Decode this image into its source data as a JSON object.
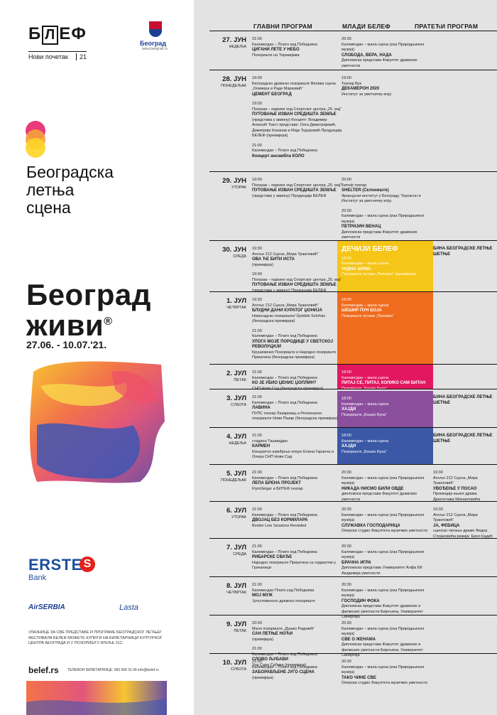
{
  "branding": {
    "belef_pre": "Б",
    "belef_box": "Л",
    "belef_mid": "Е",
    "belef_post": "Ф",
    "belef_sub": "Нови почетак",
    "belef_year": "21",
    "city_name": "Београд",
    "city_url": "www.beograd.rs"
  },
  "festival": {
    "l1": "Београдска",
    "l2": "летња",
    "l3": "сцена"
  },
  "headline": {
    "l1": "Београд",
    "l2": "живи",
    "reg": "®",
    "dates": "27.06. - 10.07.'21."
  },
  "sponsors": {
    "erste": "ERSTE",
    "erste_s": "S",
    "bank": "Bank",
    "airserbia": "AirSERBIA",
    "lasta": "Lasta"
  },
  "footer": {
    "notice": "УЛАЗНИЦЕ ЗА СВЕ ПРЕДСТАВЕ И ПРОГРАМЕ БЕОГРАДСКОГ ЛЕТЊЕГ ФЕСТИВАЛА БЕЛЕФ МОЖЕТЕ КУПИТИ НА БИЛЕТАРНИЦИ КУЛТУРНОГ ЦЕНТРА БЕОГРАДА И У ПОЗОРИШТУ АТЕЉЕ 212.",
    "site": "belef.rs",
    "tel": "ТЕЛЕФОН БИЛЕТАРНИЦЕ: 060 600 31 06   info@belef.rs"
  },
  "headers": {
    "main": "ГЛАВНИ ПРОГРАМ",
    "young": "МЛАДИ БЕЛЕФ",
    "side": "ПРАТЕЋИ ПРОГРАМ"
  },
  "colors": {
    "yellow": "#f5c518",
    "orange": "#ef6c1f",
    "pink": "#e2175f",
    "purple": "#8c4f9e",
    "blue": "#3b58a6",
    "background": "#e3e3e3"
  },
  "schedule": [
    {
      "date": "27. ЈУН",
      "weekday": "НЕДЕЉА",
      "main": [
        {
          "time": "21:00",
          "place": "Калемегдан – Плато код Победника",
          "title": "ЦИГАНИ ЛЕТЕ У НЕБО",
          "info": "Позориште на Теразијама"
        }
      ],
      "young": [
        {
          "time": "20:30",
          "place": "Калемегдан – мала сцена (иза Природњачког музеја)",
          "title": "СЛОБОДА, ВЕРА, НАДА",
          "info": "Дипломска представа Факултет драмских уметности"
        }
      ],
      "side": []
    },
    {
      "date": "28. ЈУН",
      "weekday": "ПОНЕДЕЉАК",
      "main": [
        {
          "time": "19:00",
          "place": "Београдско драмско позориште Велика сцена „Оливера и Раде Марковић“",
          "title": "ЦЕМЕНТ БЕОГРАД",
          "info": ""
        },
        {
          "time": "19:00",
          "place": "Полазак – паркинг код Спортског центра „25. мај“",
          "title": "ПУТОВАЊЕ ИЗВАН СРЕДИШТА ЗЕМЉЕ",
          "info": "(представа у авиону) Концепт: Владимир Алексић Текст представе: Олга Димитријевић, Димитрије Коканов и Маја Тодоровић Продукција БЕЛЕФ (премијера)"
        },
        {
          "time": "21:00",
          "place": "Калемегдан – Плато код Победника",
          "title": "Концерт ансамбла КОЛО",
          "info": ""
        }
      ],
      "young": [
        {
          "time": "19:00",
          "place": "Театар Вук",
          "title": "ДЕКАМЕРОН 2020",
          "info": "Институт за уметничку игру"
        }
      ],
      "side": []
    },
    {
      "date": "29. ЈУН",
      "weekday": "УТОРАК",
      "main": [
        {
          "time": "19:00",
          "place": "Полазак – паркинг код Спортског центра „25. мај“",
          "title": "ПУТОВАЊЕ ИЗВАН СРЕДИШТА ЗЕМЉЕ",
          "info": "(представа у авиону) Продукција БЕЛЕФ"
        }
      ],
      "young": [
        {
          "time": "20:00",
          "place": "Битеф театар",
          "title": "SHELTER (Склониште)",
          "info": "Француски институт у Београду, Тероксон и Институт за уметничку игру"
        },
        {
          "time": "20:30",
          "place": "Калемегдан – мала сцена (иза Природњачког музеја)",
          "title": "ПЕТРИЈИН ВЕНАЦ",
          "info": "Дипломска представа Факултет драмских уметности"
        }
      ],
      "side": []
    },
    {
      "date": "30. ЈУН",
      "weekday": "СРЕДА",
      "main": [
        {
          "time": "19:30",
          "place": "Атеље 212 Сцена „Мира Траиловић“",
          "title": "ОВА ЋЕ БИТИ ИСТА",
          "info": "(премијера)"
        },
        {
          "time": "19:00",
          "place": "Полазак – паркинг код Спортског центра „25. мај“",
          "title": "ПУТОВАЊЕ ИЗВАН СРЕДИШТА ЗЕМЉЕ",
          "info": "(представа у авиону) Продукција БЕЛЕФ"
        }
      ],
      "young_title": "ДЕЧИЈИ БЕЛЕФ",
      "young": [
        {
          "time": "18:00",
          "place": "Калемегдан – мала сцена",
          "title": "ЧУДНА ШУМА",
          "info": "Позориште лутака „Пинокио“ (премијера)"
        }
      ],
      "side": [
        {
          "time": "",
          "place": "",
          "title": "БИНА БЕОГРАДСКЕ ЛЕТЊЕ ШЕТЊЕ",
          "info": ""
        }
      ]
    },
    {
      "date": "1. ЈУЛ",
      "weekday": "ЧЕТВРТАК",
      "main": [
        {
          "time": "19:30",
          "place": "Атеље 212 Сцена „Мира Траиловић“",
          "title": "БЛУДНИ ДАНИ КУРАТОГ ЏОНИЈА",
          "info": "Новосадско позориште/ Újvidéki Színház (београдска премијера)"
        },
        {
          "time": "21:00",
          "place": "Калемегдан – Плато код Победника",
          "title": "УЛОГА МОЈЕ ПОРОДИЦЕ У СВЕТСКОЈ РЕВОЛУЦИЈИ",
          "info": "Крушевачко Позориште и Народно позориште Приштина (београдска премијера)"
        }
      ],
      "young": [
        {
          "time": "18:00",
          "place": "Калемегдан – мала сцена",
          "title": "ШЕШИР ПУН БОЈА",
          "info": "Позориште лутака „Пинокио“"
        }
      ],
      "side": []
    },
    {
      "date": "2. ЈУЛ",
      "weekday": "ПЕТАК",
      "main": [
        {
          "time": "21:00",
          "place": "Калемегдан – Плато код Победника",
          "title": "КО ЈЕ УБИО ЏЕНИС ЏОПЛИН?",
          "info": "СНП Нови Сад (београдска премијера)"
        }
      ],
      "young": [
        {
          "time": "18:00",
          "place": "Калемегдан – мала сцена",
          "title": "ПИТАЈ СЕ, ПИТАЈ, КОЛИКО САМ БИТАН",
          "info": "Позориште „Бошко Буха“"
        }
      ],
      "side": []
    },
    {
      "date": "3. ЈУЛ",
      "weekday": "СУБОТА",
      "main": [
        {
          "time": "21:00",
          "place": "Калемегдан – Плато код Победника",
          "title": "ЛАВИНА",
          "info": "ПУЛС театар Лазаревац и Регионално позориште Нови Пазар (београдска премијера)"
        }
      ],
      "young": [
        {
          "time": "18:00",
          "place": "Калемегдан – мала сцена",
          "title": "ХАЈДИ",
          "info": "Позориште „Бошко Буха“"
        }
      ],
      "side": [
        {
          "time": "",
          "place": "",
          "title": "БИНА БЕОГРАДСКЕ ЛЕТЊЕ ШЕТЊЕ",
          "info": ""
        }
      ]
    },
    {
      "date": "4. ЈУЛ",
      "weekday": "НЕДЕЉА",
      "main": [
        {
          "time": "21:00",
          "place": "стадион Ташмајдан",
          "title": "КАРМЕН",
          "info": "Концертно извођење опере Елина Гаранча и Опера СНП Нови Сад"
        }
      ],
      "young": [
        {
          "time": "18:00",
          "place": "Калемегдан – мала сцена",
          "title": "ХАЈДИ",
          "info": "Позориште „Бошко Буха“"
        }
      ],
      "side": [
        {
          "time": "",
          "place": "",
          "title": "БИНА БЕОГРАДСКЕ ЛЕТЊЕ ШЕТЊЕ",
          "info": ""
        }
      ]
    },
    {
      "date": "5. ЈУЛ",
      "weekday": "ПОНЕДЕЉАК",
      "main": [
        {
          "time": "21:00",
          "place": "Калемегдан – Плато код Победника",
          "title": "ЛЕПА БРЕНА ПРОЈЕКТ",
          "info": "FlyinGinger и БИТЕФ театар"
        }
      ],
      "young": [
        {
          "time": "20:30",
          "place": "Калемегдан – мала сцена (иза Природњачког музеја)",
          "title": "НИКАДА НИСМО БИЛИ ОВДЕ",
          "info": "дипломска представа Факултет драмских уметности"
        }
      ],
      "side": [
        {
          "time": "19:30",
          "place": "Атеље 212 Сцена „Мира Траиловић“",
          "title": "УВОЂЕЊЕ У ПОСАО",
          "info": "Промоција књиге драма Драгослава Михаиловића"
        }
      ]
    },
    {
      "date": "6. ЈУЛ",
      "weekday": "УТОРАК",
      "main": [
        {
          "time": "21:00",
          "place": "Калемегдан – Плато код Победника",
          "title": "ДВОЈАЦ БЕЗ КОРМИЛАРА",
          "info": "Border Line Sessions Revisited"
        }
      ],
      "young": [
        {
          "time": "20:30",
          "place": "Калемегдан – мала сцена (иза Природњачког музеја)",
          "title": "СЛУЖАВКА ГОСПОДАРИЦА",
          "info": "Оперски студио Факултета музичких уметности"
        }
      ],
      "side": [
        {
          "time": "19:30",
          "place": "Атеље 212 Сцена „Мира Траиловић“",
          "title": "ЈА, ФЕБИЦА",
          "info": "сценско читање драме Федор Стојановића режија: Ерол Кадић"
        }
      ]
    },
    {
      "date": "7. ЈУЛ",
      "weekday": "СРЕДА",
      "main": [
        {
          "time": "21:00",
          "place": "Калемегдан – Плато код Победника",
          "title": "РИБАРСКЕ СВАЂЕ",
          "info": "Народно позориште Приштина са седиштем у Грачаници"
        }
      ],
      "young": [
        {
          "time": "20:30",
          "place": "Калемегдан – мала сцена (иза Природњачког музеја)",
          "title": "БРАЧНА ИГРА",
          "info": "Дипломска представа Универзитет Алфа БК Академија уметности"
        }
      ],
      "side": []
    },
    {
      "date": "8. ЈУЛ",
      "weekday": "ЧЕТВРТАК",
      "main": [
        {
          "time": "21:00",
          "place": "Калемегдан Плато код Победника",
          "title": "МОЈ МУЖ",
          "info": "Југословенско драмско позориште"
        }
      ],
      "young": [
        {
          "time": "20:30",
          "place": "Калемегдан – мала сцена (иза Природњачког музеја)",
          "title": "ГОСПОДИН ФОКА",
          "info": "Дипломска представа Факултет драмских и филмских уметности Бијељина, Универзитет Синергија"
        }
      ],
      "side": []
    },
    {
      "date": "9. ЈУЛ",
      "weekday": "ПЕТАК",
      "main": [
        {
          "time": "20:00",
          "place": "Мало позориште „Душко Радовић“",
          "title": "САН ЛЕТЊЕ НОЋИ",
          "info": "(премијера)"
        },
        {
          "time": "21:00",
          "place": "Калемегдан – Плато код Победника",
          "title": "СЛОВО ЉУБАВИ",
          "info": "Уна Сара Србика (премијера)"
        }
      ],
      "young": [
        {
          "time": "20:30",
          "place": "Калемегдан – мала сцена (иза Природњачког музеја)",
          "title": "СВЕ О ЖЕНАМА",
          "info": "Дипломска представа Факултет драмских и филмских уметности Бијељина, Универзитет Синергија"
        }
      ],
      "side": []
    },
    {
      "date": "10. ЈУЛ",
      "weekday": "СУБОТА",
      "main": [
        {
          "time": "21:00",
          "place": "Калемегдан – Плато код Победника",
          "title": "ЗАБОРАВЉЕНЕ ЈУГО СЦЕНА",
          "info": "(премијера)"
        }
      ],
      "young": [
        {
          "time": "20:30",
          "place": "Калемегдан – мала сцена (иза Природњачког музеја)",
          "title": "ТАКО ЧИНЕ СВЕ",
          "info": "Оперски студио Факултета музичких уметности"
        }
      ],
      "side": []
    }
  ]
}
